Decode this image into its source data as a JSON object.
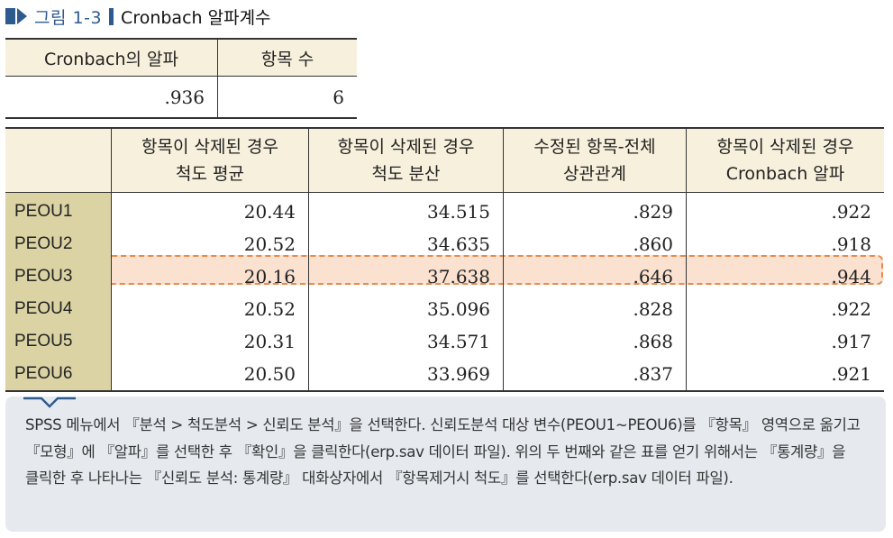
{
  "figure": {
    "label": "그림 1-3",
    "title": "Cronbach 알파계수"
  },
  "summary_table": {
    "headers": [
      "Cronbach의 알파",
      "항목 수"
    ],
    "values": [
      ".936",
      "6"
    ]
  },
  "item_table": {
    "headers": [
      [
        "",
        ""
      ],
      [
        "항목이 삭제된 경우",
        "척도 평균"
      ],
      [
        "항목이 삭제된 경우",
        "척도 분산"
      ],
      [
        "수정된 항목-전체",
        "상관관계"
      ],
      [
        "항목이 삭제된 경우",
        "Cronbach 알파"
      ]
    ],
    "rows": [
      {
        "label": "PEOU1",
        "mean": "20.44",
        "variance": "34.515",
        "corr": ".829",
        "alpha": ".922"
      },
      {
        "label": "PEOU2",
        "mean": "20.52",
        "variance": "34.635",
        "corr": ".860",
        "alpha": ".918"
      },
      {
        "label": "PEOU3",
        "mean": "20.16",
        "variance": "37.638",
        "corr": ".646",
        "alpha": ".944"
      },
      {
        "label": "PEOU4",
        "mean": "20.52",
        "variance": "35.096",
        "corr": ".828",
        "alpha": ".922"
      },
      {
        "label": "PEOU5",
        "mean": "20.31",
        "variance": "34.571",
        "corr": ".868",
        "alpha": ".917"
      },
      {
        "label": "PEOU6",
        "mean": "20.50",
        "variance": "33.969",
        "corr": ".837",
        "alpha": ".921"
      }
    ],
    "highlighted_row": "PEOU3"
  },
  "note": {
    "text": "SPSS 메뉴에서 『분석 > 척도분석 > 신뢰도 분석』을 선택한다. 신뢰도분석 대상 변수(PEOU1~PEOU6)를 『항목』 영역으로 옮기고 『모형』에 『알파』를 선택한 후 『확인』을 클릭한다(erp.sav 데이터 파일). 위의 두 번째와 같은 표를 얻기 위해서는 『통계량』을 클릭한 후 나타나는 『신뢰도 분석: 통계량』 대화상자에서 『항목제거시 척도』를 선택한다(erp.sav 데이터 파일)."
  },
  "colors": {
    "accent": "#2e5b8f",
    "header_bg": "#f7f0dc",
    "label_bg": "#dcd3a4",
    "highlight": "#e88a4a",
    "note_bg": "#e6eaef"
  }
}
